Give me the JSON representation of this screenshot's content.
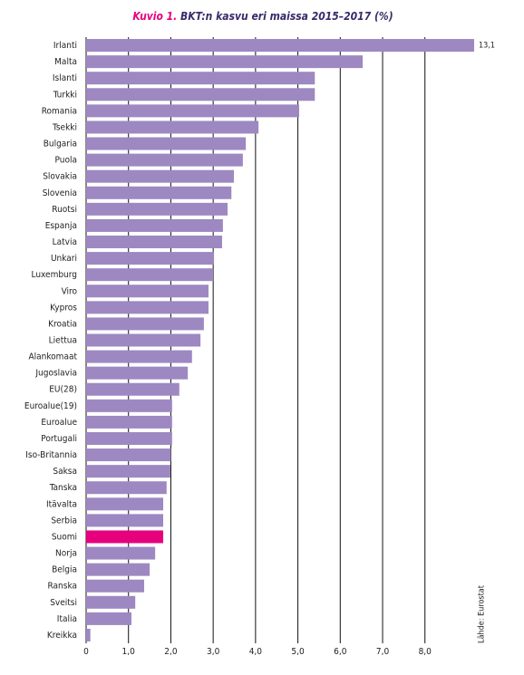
{
  "chart_data": {
    "type": "barh",
    "figure_label": "Kuvio 1.",
    "title": "BKT:n kasvu eri maissa 2015–2017 (%)",
    "source": "Lähde: Eurostat",
    "categories": [
      "Irlanti",
      "Malta",
      "Islanti",
      "Turkki",
      "Romania",
      "Tsekki",
      "Bulgaria",
      "Puola",
      "Slovakia",
      "Slovenia",
      "Ruotsi",
      "Espanja",
      "Latvia",
      "Unkari",
      "Luxemburg",
      "Viro",
      "Kypros",
      "Kroatia",
      "Liettua",
      "Alankomaat",
      "Jugoslavia",
      "EU(28)",
      "Euroalue(19)",
      "Euroalue",
      "Portugali",
      "Iso-Britannia",
      "Saksa",
      "Tanska",
      "Itävalta",
      "Serbia",
      "Suomi",
      "Norja",
      "Belgia",
      "Ranska",
      "Sveitsi",
      "Italia",
      "Kreikka"
    ],
    "values": [
      13.1,
      6.53,
      5.4,
      5.4,
      5.03,
      4.07,
      3.77,
      3.7,
      3.49,
      3.43,
      3.34,
      3.23,
      3.21,
      3.02,
      3.0,
      2.89,
      2.89,
      2.78,
      2.7,
      2.5,
      2.4,
      2.2,
      2.03,
      2.03,
      2.03,
      2.0,
      1.99,
      1.9,
      1.82,
      1.82,
      1.82,
      1.63,
      1.5,
      1.37,
      1.16,
      1.07,
      0.1
    ],
    "value_labels": [
      "13,1",
      null,
      null,
      null,
      null,
      null,
      null,
      null,
      null,
      null,
      null,
      null,
      null,
      null,
      null,
      null,
      null,
      null,
      null,
      null,
      null,
      null,
      null,
      null,
      null,
      null,
      null,
      null,
      null,
      null,
      null,
      null,
      null,
      null,
      null,
      null,
      null
    ],
    "colors": [
      "#9d88c2",
      "#9d88c2",
      "#9d88c2",
      "#9d88c2",
      "#9d88c2",
      "#9d88c2",
      "#9d88c2",
      "#9d88c2",
      "#9d88c2",
      "#9d88c2",
      "#9d88c2",
      "#9d88c2",
      "#9d88c2",
      "#9d88c2",
      "#9d88c2",
      "#9d88c2",
      "#9d88c2",
      "#9d88c2",
      "#9d88c2",
      "#9d88c2",
      "#9d88c2",
      "#9d88c2",
      "#9d88c2",
      "#9d88c2",
      "#9d88c2",
      "#9d88c2",
      "#9d88c2",
      "#9d88c2",
      "#9d88c2",
      "#9d88c2",
      "#e6007e",
      "#9d88c2",
      "#9d88c2",
      "#9d88c2",
      "#9d88c2",
      "#9d88c2",
      "#9d88c2"
    ],
    "xlim": [
      0,
      9.14
    ],
    "xticks": [
      0,
      {
        "value": 1,
        "label": "1,0"
      },
      {
        "value": 2,
        "label": "2,0"
      },
      {
        "value": 3,
        "label": "3,0"
      },
      {
        "value": 4,
        "label": "4,0"
      },
      {
        "value": 5,
        "label": "5,0"
      },
      {
        "value": 6,
        "label": "6,0"
      },
      {
        "value": 7,
        "label": "7,0"
      },
      {
        "value": 8,
        "label": "8,0"
      }
    ],
    "grid": true
  }
}
